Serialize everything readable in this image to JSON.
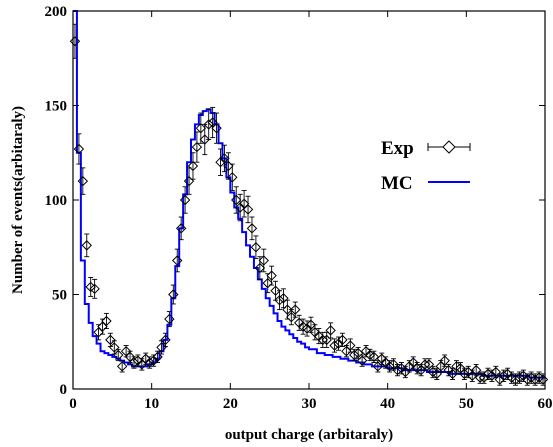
{
  "chart_data": {
    "type": "scatter",
    "xlabel": "output charge (arbitaraly)",
    "ylabel": "Number of events(arbitaraly)",
    "xlim": [
      0,
      60
    ],
    "ylim": [
      0,
      200
    ],
    "x_ticks": [
      0,
      10,
      20,
      30,
      40,
      50,
      60
    ],
    "y_ticks": [
      0,
      50,
      100,
      150,
      200
    ],
    "x_tick_labels": [
      "0",
      "10",
      "20",
      "30",
      "40",
      "50",
      "60"
    ],
    "y_tick_labels": [
      "0",
      "50",
      "100",
      "150",
      "200"
    ],
    "grid": false,
    "legend_position": "right",
    "series": [
      {
        "name": "Exp",
        "style": "diamond markers with error bars",
        "color": "#000000",
        "x": [
          0.25,
          0.75,
          1.25,
          1.75,
          2.25,
          2.75,
          3.25,
          3.75,
          4.25,
          4.75,
          5.25,
          5.75,
          6.25,
          6.75,
          7.25,
          7.75,
          8.25,
          8.75,
          9.25,
          9.75,
          10.25,
          10.75,
          11.25,
          11.75,
          12.25,
          12.75,
          13.25,
          13.75,
          14.25,
          14.75,
          15.25,
          15.75,
          16.25,
          16.75,
          17.25,
          17.75,
          18.25,
          18.75,
          19.25,
          19.75,
          20.25,
          20.75,
          21.25,
          21.75,
          22.25,
          22.75,
          23.25,
          23.75,
          24.25,
          24.75,
          25.25,
          25.75,
          26.25,
          26.75,
          27.25,
          27.75,
          28.25,
          28.75,
          29.25,
          29.75,
          30.25,
          30.75,
          31.25,
          31.75,
          32.25,
          32.75,
          33.25,
          33.75,
          34.25,
          34.75,
          35.25,
          35.75,
          36.25,
          36.75,
          37.25,
          37.75,
          38.25,
          38.75,
          39.25,
          39.75,
          40.25,
          40.75,
          41.25,
          41.75,
          42.25,
          42.75,
          43.25,
          43.75,
          44.25,
          44.75,
          45.25,
          45.75,
          46.25,
          46.75,
          47.25,
          47.75,
          48.25,
          48.75,
          49.25,
          49.75,
          50.25,
          50.75,
          51.25,
          51.75,
          52.25,
          52.75,
          53.25,
          53.75,
          54.25,
          54.75,
          55.25,
          55.75,
          56.25,
          56.75,
          57.25,
          57.75,
          58.25,
          58.75,
          59.25,
          59.75
        ],
        "y": [
          184,
          127,
          110,
          76,
          54,
          53,
          30,
          33,
          36,
          26,
          22,
          18,
          12,
          20,
          17,
          14,
          15,
          13,
          16,
          14,
          15,
          17,
          22,
          26,
          37,
          50,
          68,
          85,
          100,
          110,
          118,
          128,
          138,
          132,
          140,
          141,
          138,
          120,
          122,
          118,
          112,
          100,
          96,
          98,
          95,
          85,
          75,
          64,
          68,
          56,
          60,
          52,
          47,
          48,
          42,
          38,
          42,
          35,
          33,
          32,
          34,
          30,
          28,
          26,
          26,
          31,
          23,
          24,
          26,
          20,
          23,
          18,
          19,
          15,
          20,
          18,
          17,
          12,
          16,
          14,
          12,
          13,
          10,
          11,
          9,
          12,
          14,
          11,
          10,
          13,
          13,
          9,
          8,
          12,
          15,
          10,
          8,
          12,
          11,
          8,
          9,
          7,
          10,
          6,
          6,
          8,
          7,
          9,
          5,
          7,
          8,
          6,
          5,
          6,
          7,
          5,
          6,
          5,
          6,
          5
        ],
        "error": [
          9,
          8,
          7,
          6,
          5,
          5,
          4,
          4,
          4,
          3.5,
          3.5,
          3,
          3,
          3,
          3,
          3,
          3,
          3,
          3,
          3,
          3,
          3,
          3.5,
          3.5,
          4,
          5,
          6,
          6,
          7,
          7,
          7,
          8,
          8,
          8,
          8,
          8,
          8,
          7,
          7,
          7,
          7,
          7,
          7,
          7,
          7,
          6,
          6,
          6,
          6,
          5,
          5,
          5,
          5,
          5,
          5,
          4,
          4,
          4,
          4,
          4,
          4,
          4,
          4,
          4,
          4,
          4,
          3.5,
          3.5,
          3.5,
          3,
          3.5,
          3,
          3,
          3,
          3,
          3,
          3,
          3,
          3,
          3,
          3,
          3,
          3,
          3,
          3,
          3,
          3,
          3,
          3,
          3,
          3,
          3,
          3,
          3,
          3,
          3,
          3,
          3,
          3,
          3,
          3,
          3,
          3,
          3,
          3,
          3,
          3,
          3,
          3,
          3,
          3,
          3,
          3,
          3,
          3,
          3,
          3,
          3,
          3,
          3
        ]
      },
      {
        "name": "MC",
        "style": "step line",
        "color": "#0000ff",
        "x": [
          0,
          0.5,
          1,
          1.5,
          2,
          2.5,
          3,
          3.5,
          4,
          4.5,
          5,
          5.5,
          6,
          6.5,
          7,
          7.5,
          8,
          8.5,
          9,
          9.5,
          10,
          10.5,
          11,
          11.5,
          12,
          12.5,
          13,
          13.5,
          14,
          14.5,
          15,
          15.5,
          16,
          16.5,
          17,
          17.5,
          18,
          18.5,
          19,
          19.5,
          20,
          20.5,
          21,
          21.5,
          22,
          22.5,
          23,
          23.5,
          24,
          24.5,
          25,
          25.5,
          26,
          26.5,
          27,
          27.5,
          28,
          28.5,
          29,
          29.5,
          30,
          31,
          32,
          33,
          34,
          35,
          36,
          37,
          38,
          39,
          40,
          41,
          42,
          43,
          44,
          45,
          46,
          47,
          48,
          49,
          50,
          51,
          52,
          53,
          54,
          55,
          56,
          57,
          58,
          59,
          60
        ],
        "y": [
          200,
          125,
          68,
          45,
          35,
          28,
          24,
          20,
          19,
          18,
          17,
          16,
          15,
          14,
          13,
          12,
          12,
          12,
          12,
          13,
          14,
          16,
          20,
          26,
          34,
          48,
          65,
          85,
          103,
          120,
          132,
          140,
          145,
          147,
          148,
          146,
          140,
          130,
          122,
          112,
          104,
          96,
          90,
          83,
          76,
          70,
          64,
          58,
          53,
          48,
          44,
          40,
          36,
          33,
          31,
          29,
          27,
          25,
          24,
          22,
          21,
          19,
          18,
          17,
          16,
          15,
          14,
          13,
          12,
          12,
          11,
          11,
          10,
          10,
          10,
          9,
          9,
          9,
          8,
          8,
          8,
          8,
          7,
          7,
          7,
          7,
          7,
          7,
          6,
          6,
          6
        ]
      }
    ]
  }
}
